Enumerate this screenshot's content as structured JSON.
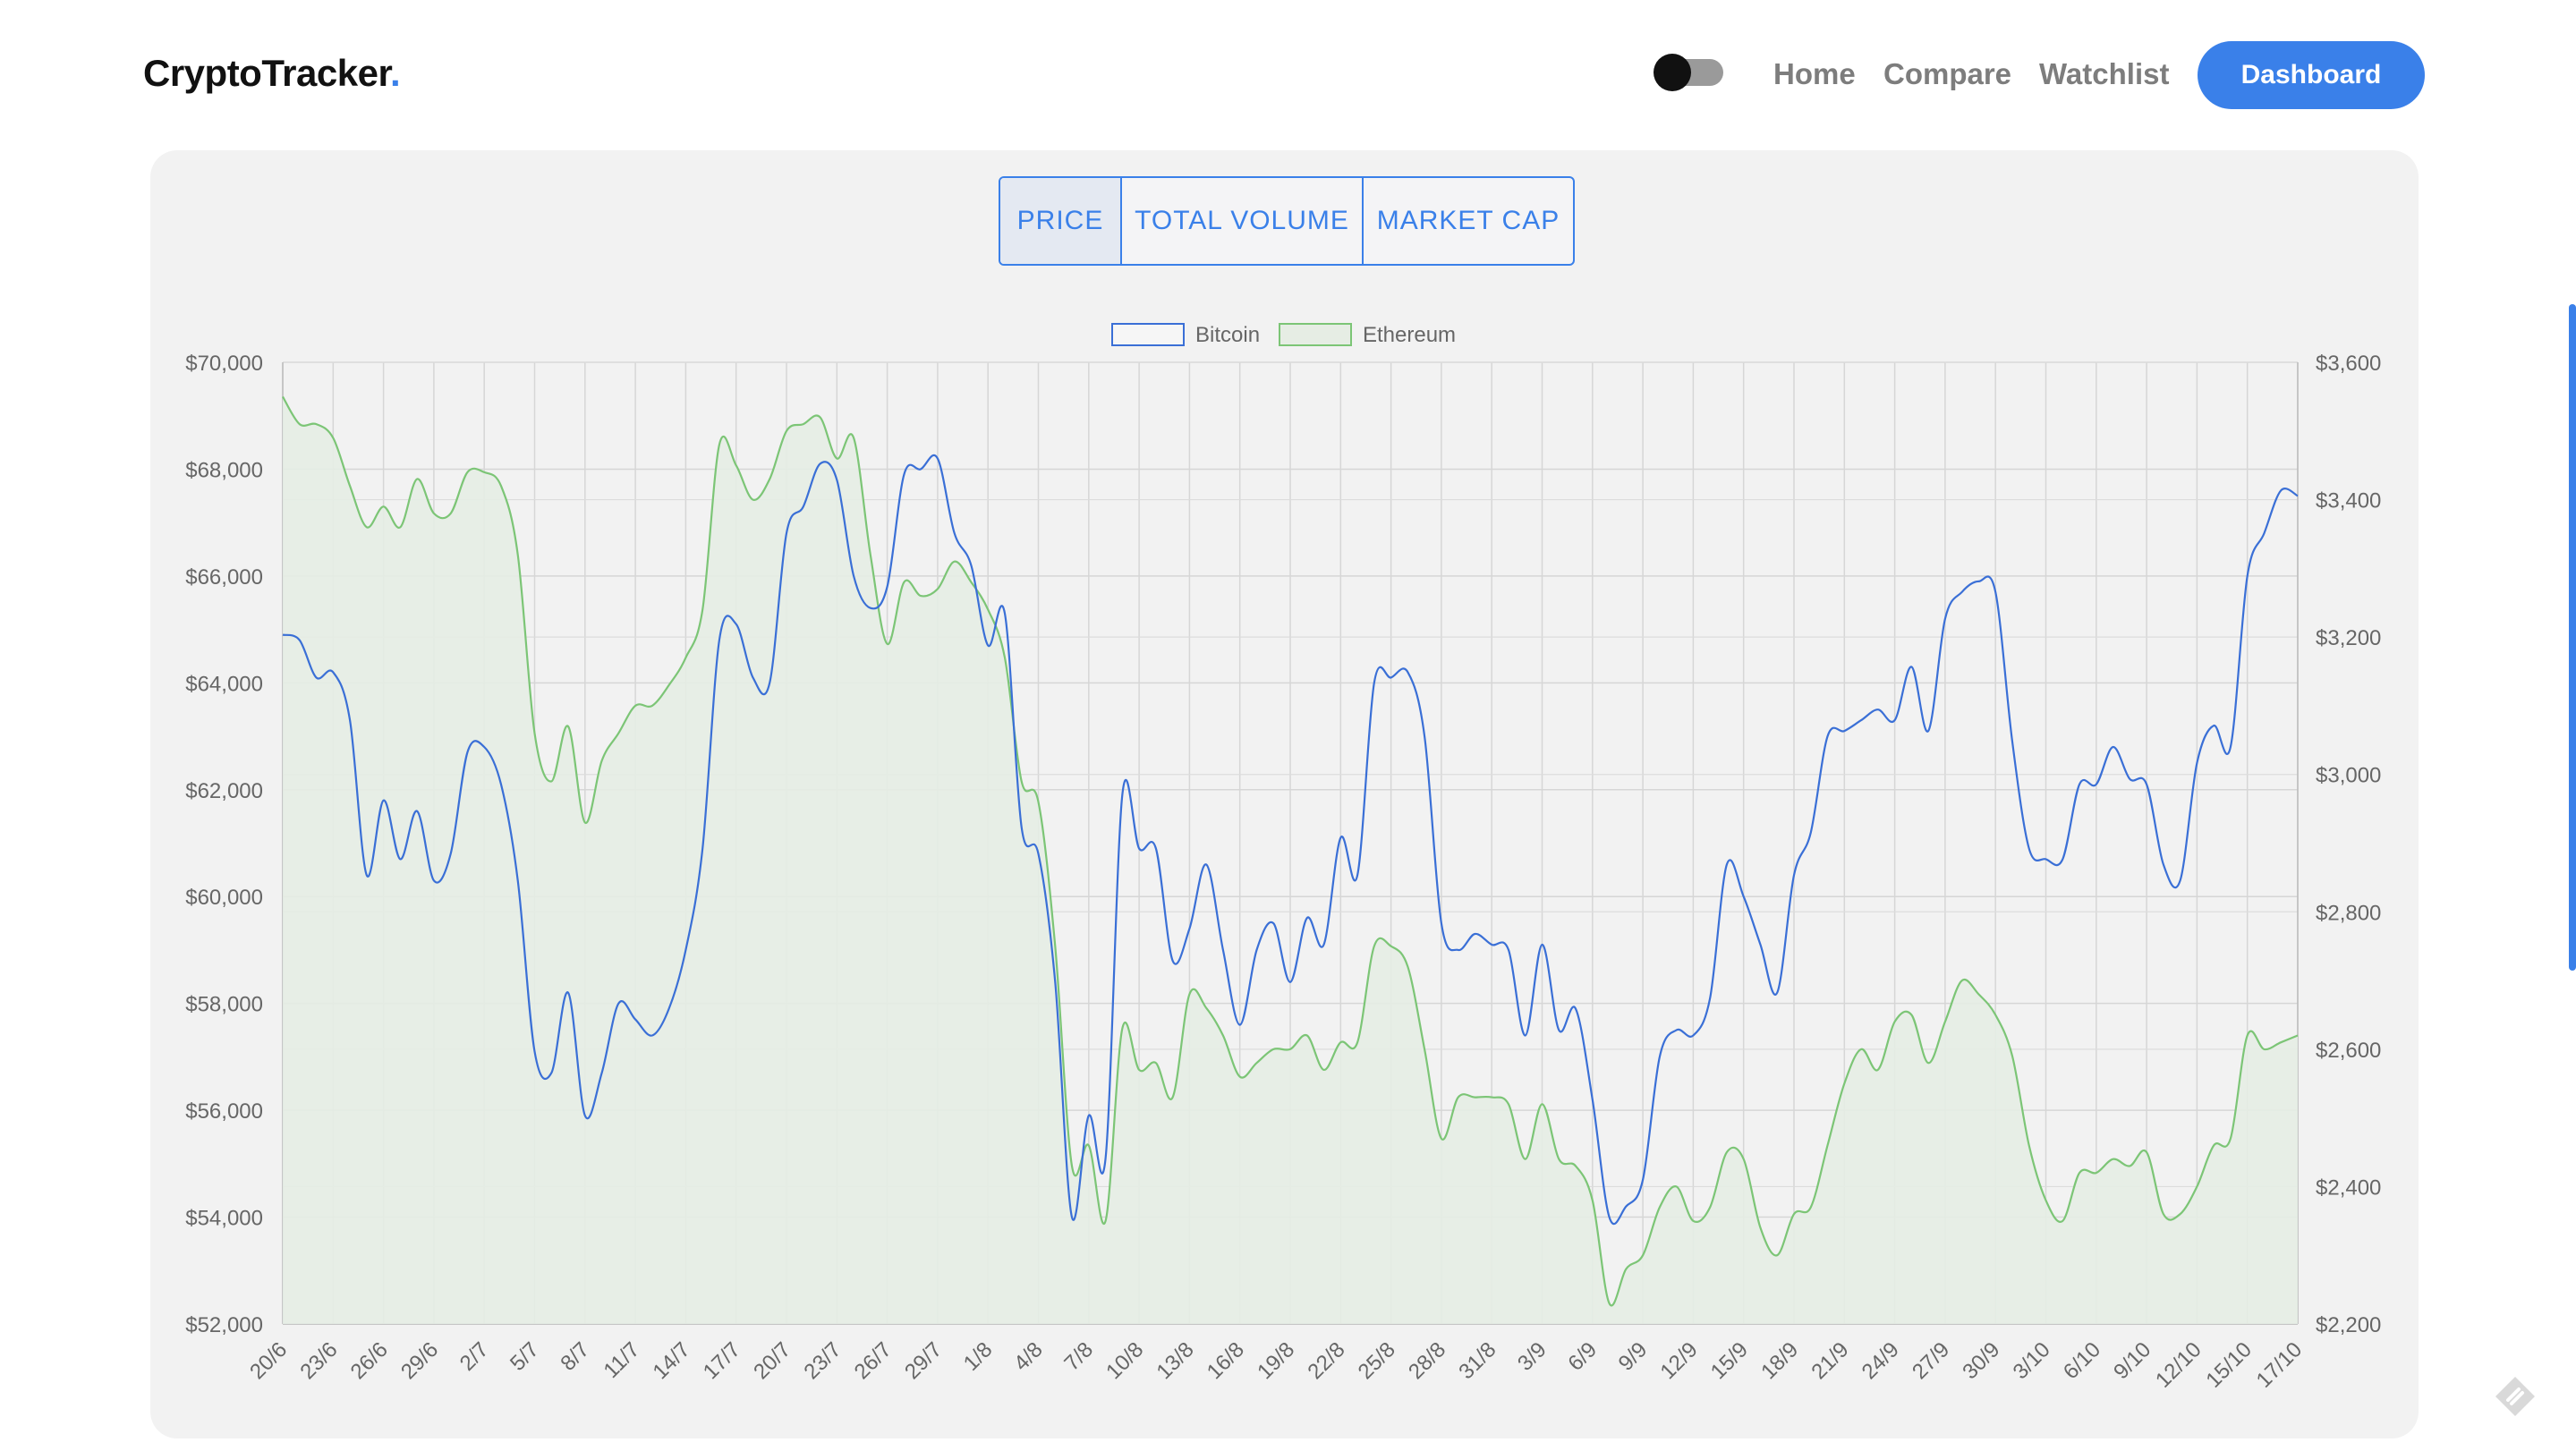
{
  "header": {
    "logo_text": "CryptoTracker",
    "logo_dot": ".",
    "nav": [
      {
        "label": "Home"
      },
      {
        "label": "Compare"
      },
      {
        "label": "Watchlist"
      }
    ],
    "dashboard_label": "Dashboard"
  },
  "chart_tabs": {
    "price": "PRICE",
    "total_volume": "TOTAL VOLUME",
    "market_cap": "MARKET CAP",
    "active": "price"
  },
  "colors": {
    "accent": "#3a80e9",
    "bitcoin_line": "#3a6fd6",
    "ethereum_line": "#7cc576",
    "ethereum_fill": "#e6ede4",
    "panel_bg": "#f2f2f2"
  },
  "icons": {
    "theme_toggle": "toggle-switch-icon",
    "corner": "diamond-logo-icon"
  },
  "chart_data": {
    "type": "line",
    "legend_position": "top-center",
    "grid": true,
    "x_ticks": [
      "20/6",
      "23/6",
      "26/6",
      "29/6",
      "2/7",
      "5/7",
      "8/7",
      "11/7",
      "14/7",
      "17/7",
      "20/7",
      "23/7",
      "26/7",
      "29/7",
      "1/8",
      "4/8",
      "7/8",
      "10/8",
      "13/8",
      "16/8",
      "19/8",
      "22/8",
      "25/8",
      "28/8",
      "31/8",
      "3/9",
      "6/9",
      "9/9",
      "12/9",
      "15/9",
      "18/9",
      "21/9",
      "24/9",
      "27/9",
      "30/9",
      "3/10",
      "6/10",
      "9/10",
      "12/10",
      "15/10",
      "17/10"
    ],
    "y_left_ticks": [
      "$52,000",
      "$54,000",
      "$56,000",
      "$58,000",
      "$60,000",
      "$62,000",
      "$64,000",
      "$66,000",
      "$68,000",
      "$70,000"
    ],
    "y_right_ticks": [
      "$2,200",
      "$2,400",
      "$2,600",
      "$2,800",
      "$3,000",
      "$3,200",
      "$3,400",
      "$3,600"
    ],
    "y_left_range": [
      52000,
      70000
    ],
    "y_right_range": [
      2200,
      3600
    ],
    "series": [
      {
        "name": "Bitcoin",
        "axis": "left",
        "values": [
          64900,
          64800,
          64100,
          64200,
          63300,
          60400,
          61800,
          60700,
          61600,
          60300,
          60800,
          62700,
          62800,
          62100,
          60300,
          57100,
          56700,
          58200,
          55900,
          56700,
          58000,
          57700,
          57400,
          57900,
          59000,
          60900,
          64800,
          65100,
          64100,
          64000,
          66800,
          67300,
          68100,
          67800,
          66000,
          65400,
          65800,
          67900,
          68000,
          68200,
          66800,
          66200,
          64700,
          65300,
          61300,
          60800,
          58400,
          54000,
          55900,
          55100,
          61900,
          60900,
          60900,
          58800,
          59400,
          60600,
          59000,
          57600,
          59000,
          59500,
          58400,
          59600,
          59100,
          61100,
          60400,
          64000,
          64100,
          64200,
          63000,
          59500,
          59000,
          59300,
          59100,
          59000,
          57400,
          59100,
          57500,
          57900,
          56200,
          54000,
          54200,
          54700,
          57000,
          57500,
          57400,
          58100,
          60600,
          60000,
          59100,
          58200,
          60400,
          61200,
          63000,
          63100,
          63300,
          63500,
          63300,
          64300,
          63100,
          65200,
          65700,
          65900,
          65700,
          62900,
          60900,
          60700,
          60700,
          62100,
          62100,
          62800,
          62200,
          62100,
          60600,
          60300,
          62500,
          63200,
          62800,
          66000,
          66800,
          67600,
          67500
        ]
      },
      {
        "name": "Ethereum",
        "axis": "right",
        "values": [
          3550,
          3510,
          3510,
          3490,
          3420,
          3360,
          3390,
          3360,
          3430,
          3380,
          3380,
          3440,
          3440,
          3420,
          3320,
          3060,
          2990,
          3070,
          2930,
          3020,
          3060,
          3100,
          3100,
          3130,
          3170,
          3240,
          3480,
          3450,
          3400,
          3430,
          3500,
          3510,
          3520,
          3460,
          3490,
          3320,
          3190,
          3280,
          3260,
          3270,
          3310,
          3280,
          3240,
          3170,
          2990,
          2960,
          2750,
          2430,
          2460,
          2350,
          2630,
          2570,
          2580,
          2530,
          2680,
          2660,
          2620,
          2560,
          2580,
          2600,
          2600,
          2620,
          2570,
          2610,
          2610,
          2750,
          2750,
          2720,
          2600,
          2470,
          2530,
          2530,
          2530,
          2520,
          2440,
          2520,
          2440,
          2430,
          2380,
          2230,
          2280,
          2300,
          2370,
          2400,
          2350,
          2370,
          2450,
          2440,
          2340,
          2300,
          2360,
          2370,
          2460,
          2550,
          2600,
          2570,
          2640,
          2650,
          2580,
          2640,
          2700,
          2680,
          2650,
          2590,
          2460,
          2380,
          2350,
          2420,
          2420,
          2440,
          2430,
          2450,
          2360,
          2360,
          2400,
          2460,
          2470,
          2620,
          2600,
          2610,
          2620
        ]
      }
    ]
  }
}
